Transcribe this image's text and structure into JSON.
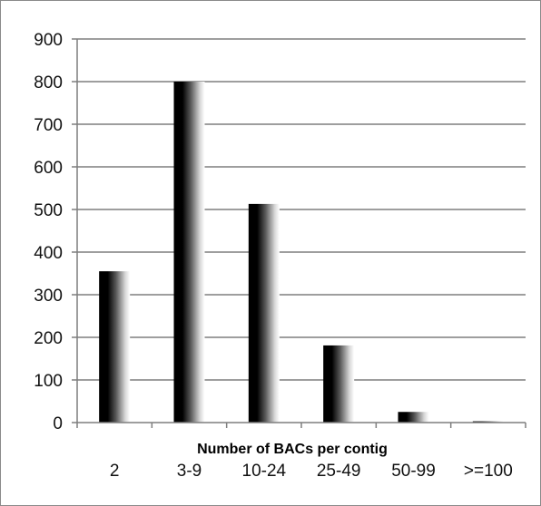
{
  "chart_data": {
    "type": "bar",
    "title": "",
    "xlabel": "Number of BACs per contig",
    "ylabel": "",
    "categories": [
      "2",
      "3-9",
      "10-24",
      "25-49",
      "50-99",
      ">=100"
    ],
    "series": [
      {
        "values": [
          355,
          800,
          513,
          181,
          25,
          3
        ]
      }
    ],
    "ylim": [
      0,
      900
    ],
    "yticks": [
      0,
      100,
      200,
      300,
      400,
      500,
      600,
      700,
      800,
      900
    ],
    "grid": true,
    "legend": "none",
    "colors": {
      "bar_dark": "#000000",
      "bar_light": "#ffffff",
      "grid": "#7f7f7f",
      "axis": "#7f7f7f"
    }
  }
}
